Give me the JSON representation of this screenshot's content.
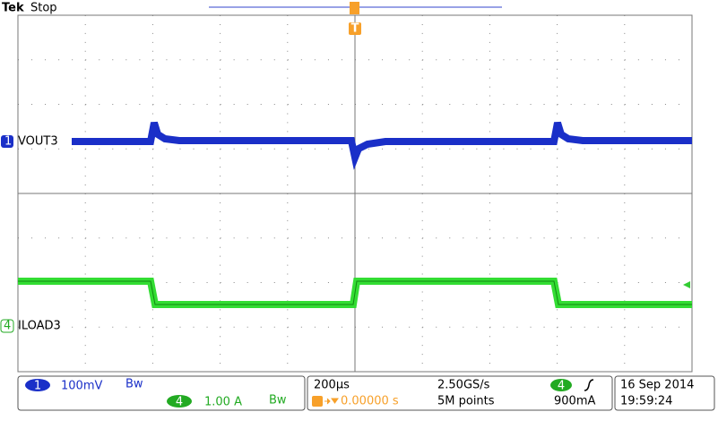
{
  "header": {
    "brand": "Tek",
    "status": "Stop",
    "trigger_marker": "T"
  },
  "channels": [
    {
      "number": "1",
      "label": "VOUT3"
    },
    {
      "number": "4",
      "label": "ILOAD3"
    }
  ],
  "status_bar": {
    "ch1": {
      "number": "1",
      "scale": "100mV",
      "bw": "Bw"
    },
    "ch4": {
      "number": "4",
      "scale": "1.00 A",
      "bw": "Bw"
    },
    "timebase": "200µs",
    "sample_rate": "2.50GS/s",
    "trigger_position": "0.00000 s",
    "record_length": "5M points",
    "trigger_source": "4",
    "trigger_level": "900mA",
    "date": "16 Sep 2014",
    "time": "19:59:24"
  }
}
